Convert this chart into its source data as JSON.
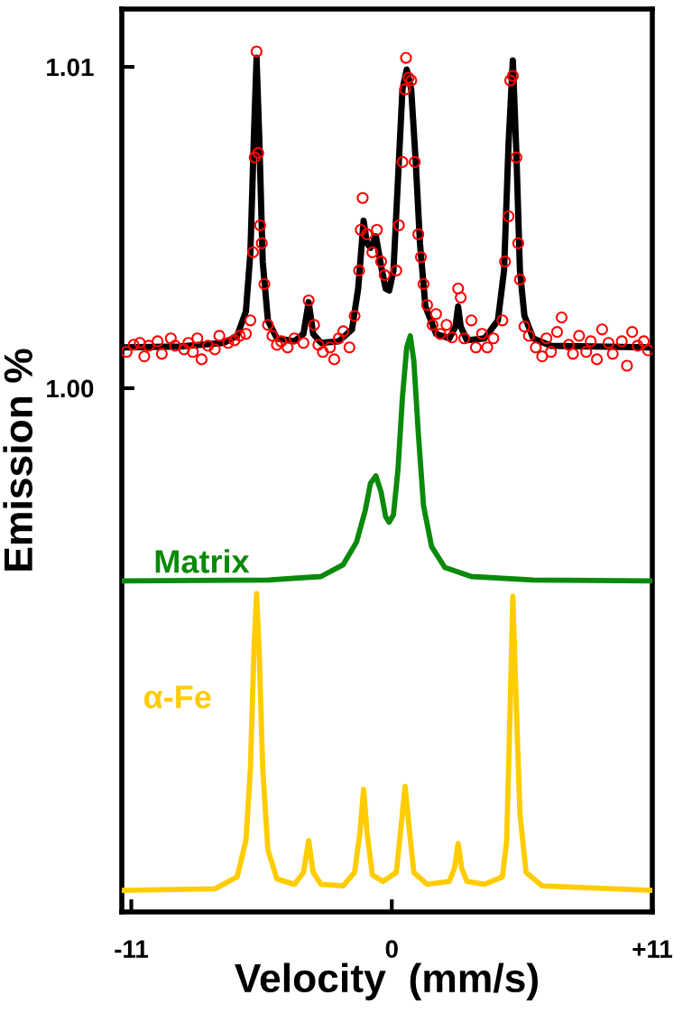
{
  "chart_data": {
    "type": "line",
    "xlabel": "Velocity  (mm/s)",
    "ylabel": "Emission %",
    "xlim": [
      -11.4,
      11.0
    ],
    "xticks": [
      -11,
      0,
      {
        "value": 11,
        "label": "+11"
      }
    ],
    "ylim": [
      0.9837,
      1.0118
    ],
    "yticks": [
      {
        "value": 1.0,
        "label": "1.00"
      },
      1.01
    ],
    "grid": false,
    "legend": false,
    "series": [
      {
        "type": "scatter",
        "color": "#ff0000",
        "marker": "circle",
        "x": [
          -11.2,
          -10.9,
          -10.64,
          -10.45,
          -10.26,
          -9.89,
          -9.71,
          -9.33,
          -9.15,
          -8.77,
          -8.59,
          -8.4,
          -8.21,
          -8.03,
          -7.76,
          -7.47,
          -7.28,
          -6.91,
          -6.64,
          -6.42,
          -6.16,
          -5.97,
          -5.86,
          -5.79,
          -5.71,
          -5.64,
          -5.56,
          -5.49,
          -5.38,
          -5.23,
          -5.04,
          -4.85,
          -4.67,
          -4.4,
          -4.11,
          -3.73,
          -3.51,
          -3.28,
          -3.1,
          -2.91,
          -2.61,
          -2.43,
          -2.24,
          -2.05,
          -1.79,
          -1.57,
          -1.38,
          -1.31,
          -1.23,
          -1.05,
          -0.82,
          -0.63,
          -0.45,
          -0.3,
          0.19,
          0.3,
          0.45,
          0.56,
          0.6,
          0.71,
          0.82,
          0.97,
          1.12,
          1.23,
          1.34,
          1.49,
          1.72,
          1.87,
          2.05,
          2.31,
          2.54,
          2.8,
          2.91,
          3.06,
          3.36,
          3.55,
          3.81,
          4.03,
          4.29,
          4.67,
          4.78,
          4.93,
          5.0,
          5.11,
          5.26,
          5.34,
          5.41,
          5.6,
          5.79,
          6.08,
          6.35,
          6.53,
          6.72,
          6.98,
          7.17,
          7.47,
          7.65,
          7.91,
          8.21,
          8.4,
          8.66,
          8.88,
          9.15,
          9.33,
          9.71,
          9.93,
          10.15,
          10.38,
          10.64,
          10.82
        ],
        "values": [
          1.00113,
          1.00135,
          1.00141,
          1.00099,
          1.00132,
          1.00146,
          1.00107,
          1.00155,
          1.00132,
          1.00121,
          1.00141,
          1.00113,
          1.00155,
          1.0009,
          1.00132,
          1.00121,
          1.00163,
          1.00141,
          1.00149,
          1.00163,
          1.00169,
          1.00211,
          1.00423,
          1.00718,
          1.01048,
          1.00732,
          1.00507,
          1.00451,
          1.00324,
          1.00197,
          1.00163,
          1.00135,
          1.00146,
          1.00127,
          1.00155,
          1.00141,
          1.00273,
          1.00197,
          1.00135,
          1.00113,
          1.00127,
          1.0009,
          1.00155,
          1.00177,
          1.00127,
          1.00225,
          1.00366,
          1.00493,
          1.00592,
          1.00479,
          1.00423,
          1.00493,
          1.00394,
          1.00352,
          1.00366,
          1.00507,
          1.00704,
          1.0093,
          1.01028,
          1.00966,
          1.00958,
          1.00704,
          1.00479,
          1.00408,
          1.00324,
          1.00259,
          1.00197,
          1.00231,
          1.00169,
          1.00197,
          1.00158,
          1.0031,
          1.00282,
          1.00155,
          1.00211,
          1.00127,
          1.00169,
          1.00127,
          1.00155,
          1.00211,
          1.00394,
          1.00535,
          1.00958,
          1.00972,
          1.00718,
          1.00451,
          1.00338,
          1.00192,
          1.00163,
          1.00127,
          1.00099,
          1.00155,
          1.00113,
          1.00175,
          1.0022,
          1.00135,
          1.00107,
          1.00163,
          1.00113,
          1.00146,
          1.0009,
          1.00183,
          1.00141,
          1.00107,
          1.00146,
          1.0007,
          1.00175,
          1.00132,
          1.00146,
          1.00118
        ]
      },
      {
        "color": "#000000",
        "x": [
          -11.38,
          -8.96,
          -7.09,
          -6.53,
          -6.16,
          -5.97,
          -5.82,
          -5.71,
          -5.6,
          -5.45,
          -5.23,
          -4.85,
          -4.11,
          -3.73,
          -3.51,
          -3.32,
          -2.99,
          -2.24,
          -1.68,
          -1.42,
          -1.19,
          -1.05,
          -0.9,
          -0.67,
          -0.45,
          -0.26,
          -0.11,
          0.07,
          0.26,
          0.45,
          0.63,
          0.82,
          1.01,
          1.19,
          1.42,
          1.87,
          2.43,
          2.69,
          2.8,
          2.91,
          3.17,
          3.92,
          4.48,
          4.74,
          4.93,
          5.11,
          5.26,
          5.41,
          5.6,
          5.97,
          6.72,
          10.99
        ],
        "values": [
          1.00127,
          1.0013,
          1.00141,
          1.00163,
          1.00239,
          1.00423,
          1.00789,
          1.01028,
          1.00789,
          1.00394,
          1.00211,
          1.00155,
          1.00146,
          1.00169,
          1.00268,
          1.00169,
          1.00141,
          1.00146,
          1.00183,
          1.0031,
          1.00521,
          1.00451,
          1.00437,
          1.00473,
          1.0038,
          1.0031,
          1.00304,
          1.00366,
          1.00648,
          1.0093,
          1.00992,
          1.0093,
          1.00704,
          1.00451,
          1.00254,
          1.00169,
          1.00155,
          1.00192,
          1.00254,
          1.00192,
          1.00149,
          1.00155,
          1.00211,
          1.00366,
          1.00761,
          1.0102,
          1.00732,
          1.00366,
          1.00225,
          1.00155,
          1.00132,
          1.00127
        ]
      },
      {
        "name": "Matrix",
        "color": "#0a8a0a",
        "x": [
          -11.38,
          -5.23,
          -2.99,
          -2.05,
          -1.49,
          -1.12,
          -0.9,
          -0.67,
          -0.45,
          -0.26,
          -0.11,
          0.07,
          0.26,
          0.45,
          0.63,
          0.78,
          0.93,
          1.12,
          1.34,
          1.68,
          2.24,
          3.36,
          5.97,
          10.99
        ],
        "values": [
          0.994,
          0.99403,
          0.99414,
          0.99451,
          0.99521,
          0.9962,
          0.99704,
          0.99727,
          0.99676,
          0.996,
          0.99583,
          0.99606,
          0.99746,
          0.99972,
          1.00127,
          1.00163,
          1.00085,
          0.99859,
          0.99634,
          0.99507,
          0.99442,
          0.99414,
          0.99403,
          0.994
        ]
      },
      {
        "name": "α-Fe",
        "color": "#ffcc00",
        "x": [
          -11.38,
          -7.47,
          -6.53,
          -6.16,
          -5.97,
          -5.82,
          -5.71,
          -5.6,
          -5.45,
          -5.23,
          -4.85,
          -4.11,
          -3.73,
          -3.51,
          -3.32,
          -2.99,
          -2.05,
          -1.57,
          -1.34,
          -1.19,
          -1.05,
          -0.82,
          -0.37,
          0.19,
          0.41,
          0.56,
          0.71,
          0.93,
          1.49,
          2.43,
          2.65,
          2.8,
          2.95,
          3.17,
          3.92,
          4.67,
          4.85,
          5.0,
          5.11,
          5.23,
          5.41,
          5.67,
          6.35,
          10.99
        ],
        "values": [
          0.98437,
          0.98442,
          0.98479,
          0.98592,
          0.98817,
          0.99183,
          0.99361,
          0.99183,
          0.98817,
          0.98563,
          0.98473,
          0.98456,
          0.98493,
          0.98592,
          0.98493,
          0.98456,
          0.98451,
          0.98493,
          0.9862,
          0.98752,
          0.9862,
          0.98485,
          0.98465,
          0.98493,
          0.98648,
          0.98761,
          0.98648,
          0.98493,
          0.98456,
          0.98465,
          0.98507,
          0.98583,
          0.98507,
          0.98465,
          0.98456,
          0.98479,
          0.98592,
          0.99014,
          0.99352,
          0.9907,
          0.98676,
          0.98493,
          0.98451,
          0.98437
        ]
      }
    ]
  }
}
